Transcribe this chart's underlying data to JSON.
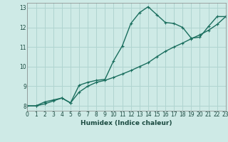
{
  "xlabel": "Humidex (Indice chaleur)",
  "ylabel": "",
  "bg_color": "#ceeae6",
  "grid_color": "#b0d4d0",
  "line_color": "#1a6e5e",
  "x_data": [
    0,
    1,
    2,
    3,
    4,
    5,
    6,
    7,
    8,
    9,
    10,
    11,
    12,
    13,
    14,
    15,
    16,
    17,
    18,
    19,
    20,
    21,
    22,
    23
  ],
  "y_curve": [
    8.0,
    8.0,
    8.2,
    8.3,
    8.4,
    8.15,
    9.05,
    9.2,
    9.3,
    9.35,
    10.3,
    11.05,
    12.2,
    12.75,
    13.05,
    12.65,
    12.25,
    12.2,
    12.0,
    11.45,
    11.5,
    12.05,
    12.55,
    12.55
  ],
  "y_line": [
    8.0,
    8.0,
    8.1,
    8.25,
    8.4,
    8.15,
    8.7,
    9.0,
    9.2,
    9.3,
    9.45,
    9.62,
    9.8,
    10.0,
    10.2,
    10.5,
    10.78,
    11.0,
    11.2,
    11.42,
    11.62,
    11.85,
    12.15,
    12.55
  ],
  "xlim": [
    0,
    23
  ],
  "ylim": [
    7.75,
    13.25
  ],
  "yticks": [
    8,
    9,
    10,
    11,
    12,
    13
  ],
  "xticks": [
    0,
    1,
    2,
    3,
    4,
    5,
    6,
    7,
    8,
    9,
    10,
    11,
    12,
    13,
    14,
    15,
    16,
    17,
    18,
    19,
    20,
    21,
    22,
    23
  ],
  "marker_size": 3.5,
  "line_width": 1.0
}
